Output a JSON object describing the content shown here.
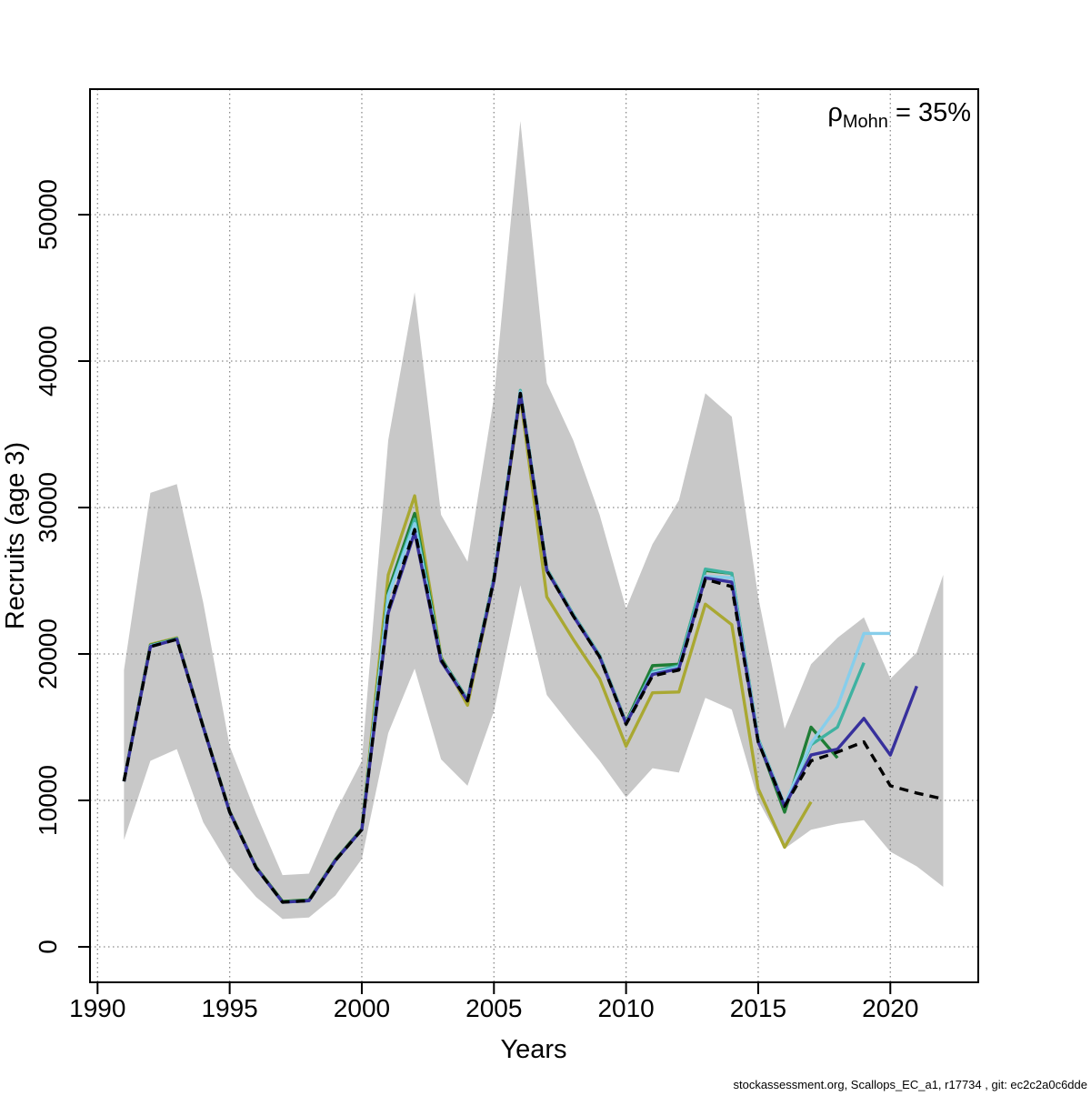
{
  "annotation": {
    "rho_symbol": "ρ",
    "rho_subscript": "Mohn",
    "rho_rest": " = 35%"
  },
  "footer": {
    "text": "stockassessment.org, Scallops_EC_a1, r17734 , git: ec2c2a0c6dde"
  },
  "chart_data": {
    "type": "line",
    "title": "",
    "xlabel": "Years",
    "ylabel": "Recruits (age 3)",
    "x_ticks": [
      1990,
      1995,
      2000,
      2005,
      2010,
      2015,
      2020
    ],
    "y_ticks": [
      0,
      10000,
      20000,
      30000,
      40000,
      50000
    ],
    "xlim": [
      1989.7,
      2023.3
    ],
    "ylim": [
      -2400,
      58500
    ],
    "grid": true,
    "legend": "none",
    "band": {
      "name": "confidence-interval-band",
      "color": "#c8c8c8",
      "years": [
        1991,
        1992,
        1993,
        1994,
        1995,
        1996,
        1997,
        1998,
        1999,
        2000,
        2001,
        2002,
        2003,
        2004,
        2005,
        2006,
        2007,
        2008,
        2009,
        2010,
        2011,
        2012,
        2013,
        2014,
        2015,
        2016,
        2017,
        2018,
        2019,
        2020,
        2021,
        2022
      ],
      "lo": [
        7300,
        12700,
        13500,
        8500,
        5500,
        3400,
        1900,
        2000,
        3500,
        6000,
        14600,
        19000,
        12800,
        11000,
        16100,
        24700,
        17200,
        14900,
        12700,
        10200,
        12200,
        11900,
        17000,
        16200,
        10000,
        6700,
        8000,
        8400,
        8650,
        6500,
        5500,
        4100
      ],
      "hi": [
        18900,
        31000,
        31600,
        23500,
        13700,
        9100,
        4900,
        5000,
        9200,
        12700,
        34600,
        44700,
        29500,
        26300,
        37500,
        56400,
        38500,
        34600,
        29500,
        23100,
        27500,
        30500,
        37800,
        36200,
        23900,
        14900,
        19300,
        21100,
        22500,
        18300,
        20100,
        25400
      ]
    },
    "series": [
      {
        "name": "retro-peel-2017",
        "color": "#a9a832",
        "dashed": false,
        "start_year": 1991,
        "values": [
          11350,
          20650,
          21100,
          15050,
          9250,
          5450,
          3100,
          3200,
          5950,
          8050,
          25400,
          30800,
          19800,
          16500,
          25000,
          37600,
          23900,
          21000,
          18300,
          13700,
          17350,
          17400,
          23400,
          22000,
          10800,
          6800,
          9900
        ]
      },
      {
        "name": "retro-peel-2018",
        "color": "#1f7d35",
        "dashed": false,
        "start_year": 1991,
        "values": [
          11350,
          20600,
          21050,
          15050,
          9250,
          5450,
          3100,
          3200,
          5950,
          8050,
          24300,
          29600,
          19700,
          16900,
          25200,
          37800,
          25800,
          22700,
          19900,
          15350,
          19200,
          19300,
          25700,
          25500,
          14100,
          9200,
          15000,
          12900
        ]
      },
      {
        "name": "retro-peel-2019",
        "color": "#3fb2a1",
        "dashed": false,
        "start_year": 1991,
        "values": [
          11300,
          20550,
          21050,
          15000,
          9200,
          5400,
          3050,
          3150,
          5900,
          8000,
          24000,
          29200,
          19650,
          16900,
          25200,
          38000,
          25800,
          22700,
          19900,
          15300,
          18800,
          19200,
          25800,
          25500,
          14200,
          9700,
          13800,
          15000,
          19400
        ]
      },
      {
        "name": "retro-peel-2020",
        "color": "#87ceeb",
        "dashed": false,
        "start_year": 1991,
        "values": [
          11300,
          20550,
          21000,
          15000,
          9200,
          5400,
          3050,
          3150,
          5900,
          8000,
          24000,
          28900,
          19600,
          16850,
          25100,
          37900,
          25750,
          22650,
          19850,
          15300,
          18700,
          19100,
          25300,
          25200,
          14100,
          9700,
          13900,
          16400,
          21400,
          21400
        ]
      },
      {
        "name": "retro-peel-2021",
        "color": "#37309c",
        "dashed": false,
        "start_year": 1991,
        "values": [
          11300,
          20500,
          21000,
          15000,
          9200,
          5400,
          3050,
          3150,
          5900,
          8000,
          22800,
          28300,
          19500,
          16800,
          25000,
          37800,
          25700,
          22600,
          19800,
          15250,
          18600,
          19000,
          25200,
          24900,
          14000,
          9600,
          13100,
          13500,
          15600,
          13100,
          17800
        ]
      },
      {
        "name": "base-run",
        "color": "#000000",
        "dashed": true,
        "start_year": 1991,
        "values": [
          11300,
          20500,
          21000,
          15000,
          9200,
          5400,
          3050,
          3150,
          5900,
          8000,
          23000,
          28500,
          19600,
          16800,
          25100,
          37800,
          25700,
          22600,
          19800,
          15200,
          18500,
          18900,
          25100,
          24600,
          14000,
          9600,
          12700,
          13300,
          14000,
          11000,
          10500,
          10100
        ]
      }
    ],
    "grid_color": "#8a8a8a",
    "axis_color": "#000000"
  }
}
